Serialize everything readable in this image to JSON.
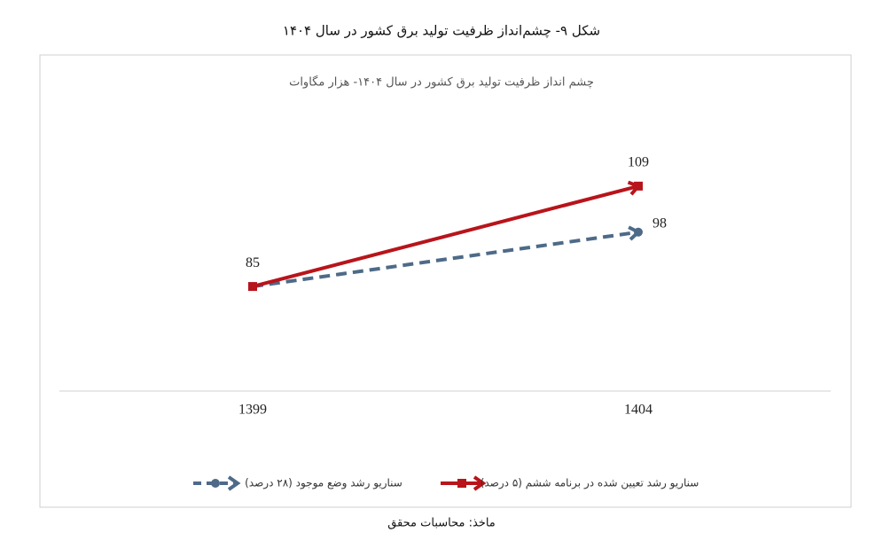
{
  "figure_caption": "شکل ۹- چشم‌انداز ظرفیت تولید برق کشور در سال ۱۴۰۴",
  "source": "ماخذ: محاسبات محقق",
  "chart_data": {
    "type": "line",
    "title": "چشم انداز ظرفیت تولید برق کشور در سال ۱۴۰۴- هزار مگاوات",
    "categories": [
      "1399",
      "1404"
    ],
    "series": [
      {
        "name": "سناریو رشد تعیین شده در برنامه ششم (۵ درصد)",
        "color": "#b8141b",
        "values": [
          85,
          109
        ],
        "dashed": false,
        "marker": "square"
      },
      {
        "name": "سناریو رشد وضع موجود (۲۸ درصد)",
        "color": "#4e6a88",
        "values": [
          85,
          98
        ],
        "dashed": true,
        "marker": "circle"
      }
    ],
    "ylim": [
      60,
      120
    ],
    "legend": "bottom"
  }
}
